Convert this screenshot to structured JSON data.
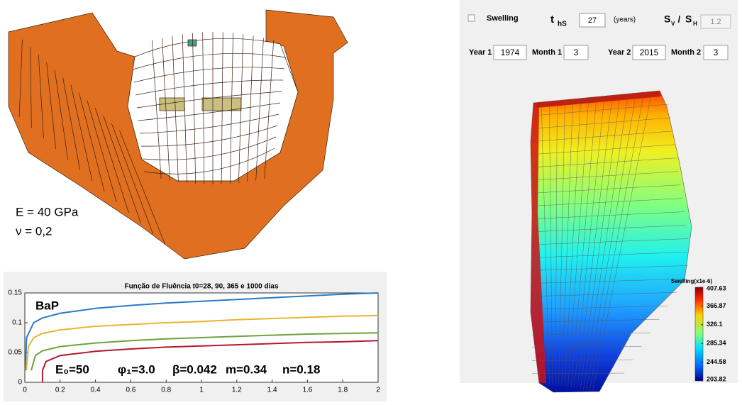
{
  "mesh_panel": {
    "modulus": "E = 40 GPa",
    "poisson": "ν = 0,2"
  },
  "chart_data": {
    "type": "line",
    "title": "Função de Fluência t0=28, 90, 365 e 1000 dias",
    "annotation_label": "BaP",
    "parameters": [
      "E₀=50",
      "φ₁=3.0",
      "β=0.042",
      "m=0.34",
      "n=0.18"
    ],
    "xlim": [
      0,
      2
    ],
    "xticks": [
      0,
      0.2,
      0.4,
      0.6,
      0.8,
      1,
      1.2,
      1.4,
      1.6,
      1.8,
      2
    ],
    "ylim": [
      0,
      0.15
    ],
    "yticks": [
      0,
      0.05,
      0.1,
      0.15
    ],
    "series": [
      {
        "color": "#2a7bc4",
        "x": [
          0.0028,
          0.01,
          0.05,
          0.1,
          0.2,
          0.4,
          0.6,
          0.8,
          1.0,
          1.2,
          1.4,
          1.6,
          1.8,
          2.0
        ],
        "values": [
          0.02,
          0.075,
          0.1,
          0.108,
          0.116,
          0.124,
          0.129,
          0.133,
          0.136,
          0.139,
          0.142,
          0.145,
          0.148,
          0.15
        ]
      },
      {
        "color": "#e8b531",
        "x": [
          0.009,
          0.02,
          0.05,
          0.1,
          0.2,
          0.4,
          0.6,
          0.8,
          1.0,
          1.2,
          1.4,
          1.6,
          1.8,
          2.0
        ],
        "values": [
          0.02,
          0.06,
          0.075,
          0.082,
          0.088,
          0.094,
          0.097,
          0.1,
          0.102,
          0.105,
          0.107,
          0.109,
          0.111,
          0.112
        ]
      },
      {
        "color": "#6ca33a",
        "x": [
          0.0365,
          0.06,
          0.1,
          0.2,
          0.4,
          0.6,
          0.8,
          1.0,
          1.2,
          1.4,
          1.6,
          1.8,
          2.0
        ],
        "values": [
          0.02,
          0.045,
          0.053,
          0.06,
          0.066,
          0.07,
          0.073,
          0.075,
          0.077,
          0.079,
          0.081,
          0.082,
          0.083
        ]
      },
      {
        "color": "#b3192f",
        "x": [
          0.1,
          0.1,
          0.12,
          0.2,
          0.4,
          0.6,
          0.8,
          1.0,
          1.2,
          1.4,
          1.6,
          1.8,
          2.0
        ],
        "values": [
          0,
          0.02,
          0.035,
          0.045,
          0.052,
          0.056,
          0.059,
          0.061,
          0.063,
          0.065,
          0.067,
          0.068,
          0.07
        ]
      }
    ]
  },
  "controls": {
    "swelling": "Swelling",
    "t_main": "t",
    "t_sub": "hS",
    "t_value": "27",
    "t_unit": "(years)",
    "sv_main": "S",
    "sv_sub": "V",
    "ratio_sep": " / ",
    "sh_main": "S",
    "sh_sub": "H",
    "ratio_value": "1.2",
    "year1_label": "Year 1",
    "year1": "1974",
    "month1_label": "Month 1",
    "month1": "3",
    "year2_label": "Year 2",
    "year2": "2015",
    "month2_label": "Month 2",
    "month2": "3"
  },
  "colorbar": {
    "label": "Swelling(x1e-6)",
    "lim": [
      203.82,
      407.63
    ],
    "ticks": [
      407.63,
      366.87,
      326.1,
      285.34,
      244.58,
      203.82
    ]
  }
}
